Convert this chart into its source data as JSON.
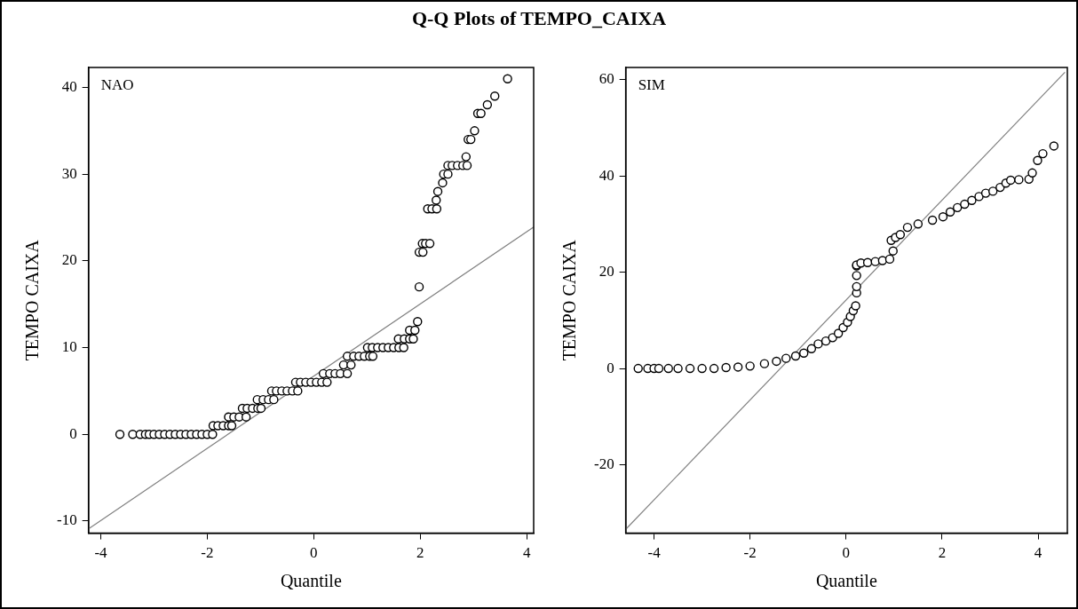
{
  "chart_data": [
    {
      "type": "scatter",
      "title": "Q-Q Plots of TEMPO_CAIXA",
      "xlabel": "Quantile",
      "ylabel": "TEMPO CAIXA",
      "annotations": [
        "NAO"
      ],
      "xlim": [
        -4.23,
        4.13
      ],
      "xticks": [
        -4,
        -2,
        0,
        2,
        4
      ],
      "ylim": [
        -11.4,
        42.3
      ],
      "yticks": [
        -10,
        0,
        10,
        20,
        30,
        40
      ],
      "series": [
        {
          "marker": "circle",
          "color": "#000000",
          "x": [
            -3.64,
            -3.4,
            -3.26,
            -3.16,
            -3.09,
            -3.0,
            -2.9,
            -2.8,
            -2.7,
            -2.6,
            -2.5,
            -2.4,
            -2.3,
            -2.2,
            -2.1,
            -2.0,
            -1.9,
            -1.89,
            -1.8,
            -1.7,
            -1.6,
            -1.54,
            -1.6,
            -1.5,
            -1.4,
            -1.27,
            -1.34,
            -1.25,
            -1.15,
            -1.05,
            -0.99,
            -1.06,
            -0.95,
            -0.85,
            -0.75,
            -0.79,
            -0.7,
            -0.6,
            -0.5,
            -0.4,
            -0.3,
            -0.34,
            -0.25,
            -0.15,
            -0.05,
            0.05,
            0.15,
            0.25,
            0.18,
            0.3,
            0.4,
            0.5,
            0.63,
            0.56,
            0.7,
            0.63,
            0.75,
            0.85,
            0.95,
            1.05,
            1.11,
            1.01,
            1.1,
            1.2,
            1.3,
            1.4,
            1.5,
            1.6,
            1.69,
            1.59,
            1.7,
            1.8,
            1.87,
            1.8,
            1.9,
            1.95,
            1.98,
            1.98,
            2.05,
            2.04,
            2.1,
            2.18,
            2.14,
            2.22,
            2.31,
            2.3,
            2.33,
            2.42,
            2.44,
            2.52,
            2.52,
            2.6,
            2.7,
            2.8,
            2.88,
            2.86,
            2.9,
            2.95,
            3.02,
            3.08,
            3.14,
            3.26,
            3.4,
            3.64
          ],
          "values": [
            0,
            0,
            0,
            0,
            0,
            0,
            0,
            0,
            0,
            0,
            0,
            0,
            0,
            0,
            0,
            0,
            0,
            1,
            1,
            1,
            1,
            1,
            2,
            2,
            2,
            2,
            3,
            3,
            3,
            3,
            3,
            4,
            4,
            4,
            4,
            5,
            5,
            5,
            5,
            5,
            5,
            6,
            6,
            6,
            6,
            6,
            6,
            6,
            7,
            7,
            7,
            7,
            7,
            8,
            8,
            9,
            9,
            9,
            9,
            9,
            9,
            10,
            10,
            10,
            10,
            10,
            10,
            10,
            10,
            11,
            11,
            11,
            11,
            12,
            12,
            13,
            17,
            21,
            21,
            22,
            22,
            22,
            26,
            26,
            26,
            27,
            28,
            29,
            30,
            30,
            31,
            31,
            31,
            31,
            31,
            32,
            34,
            34,
            35,
            37,
            37,
            38,
            39,
            41
          ]
        },
        {
          "type": "line",
          "marker": "none",
          "color": "#808080",
          "x": [
            -4.23,
            4.13
          ],
          "values": [
            -10.9,
            23.9
          ]
        }
      ]
    },
    {
      "type": "scatter",
      "xlabel": "Quantile",
      "ylabel": "TEMPO CAIXA",
      "annotations": [
        "SIM"
      ],
      "xlim": [
        -4.59,
        4.61
      ],
      "xticks": [
        -4,
        -2,
        0,
        2,
        4
      ],
      "ylim": [
        -34.2,
        62.5
      ],
      "yticks": [
        -20,
        0,
        20,
        40,
        60
      ],
      "series": [
        {
          "marker": "circle",
          "color": "#000000",
          "x": [
            -4.33,
            -4.13,
            -4.0,
            -3.9,
            -3.7,
            -3.5,
            -3.25,
            -3.0,
            -2.75,
            -2.5,
            -2.25,
            -2.0,
            -1.7,
            -1.45,
            -1.25,
            -1.05,
            -0.88,
            -0.72,
            -0.58,
            -0.42,
            -0.28,
            -0.16,
            -0.06,
            0.03,
            0.09,
            0.15,
            0.2,
            0.22,
            0.22,
            0.22,
            0.22,
            0.22,
            0.31,
            0.45,
            0.61,
            0.76,
            0.91,
            0.98,
            0.94,
            1.03,
            1.13,
            1.28,
            1.5,
            1.8,
            2.02,
            2.17,
            2.32,
            2.47,
            2.62,
            2.77,
            2.91,
            3.06,
            3.21,
            3.33,
            3.43,
            3.6,
            3.81,
            3.88,
            3.99,
            4.1,
            4.33
          ],
          "values": [
            0,
            0,
            0,
            0,
            0,
            0,
            0,
            0,
            0,
            0.2,
            0.3,
            0.5,
            1.0,
            1.5,
            2.1,
            2.6,
            3.2,
            4.1,
            5.1,
            5.7,
            6.4,
            7.3,
            8.5,
            9.6,
            10.8,
            12.0,
            13.0,
            15.7,
            17.0,
            19.3,
            21.3,
            21.5,
            21.9,
            22.0,
            22.2,
            22.4,
            22.7,
            24.4,
            26.6,
            27.2,
            27.8,
            29.3,
            30.0,
            30.8,
            31.5,
            32.5,
            33.4,
            34.1,
            34.9,
            35.7,
            36.4,
            36.8,
            37.6,
            38.5,
            39.1,
            39.2,
            39.3,
            40.6,
            43.2,
            44.6,
            46.2
          ]
        },
        {
          "type": "line",
          "marker": "none",
          "color": "#808080",
          "x": [
            -4.59,
            4.56
          ],
          "values": [
            -33.4,
            61.5
          ]
        }
      ]
    }
  ]
}
